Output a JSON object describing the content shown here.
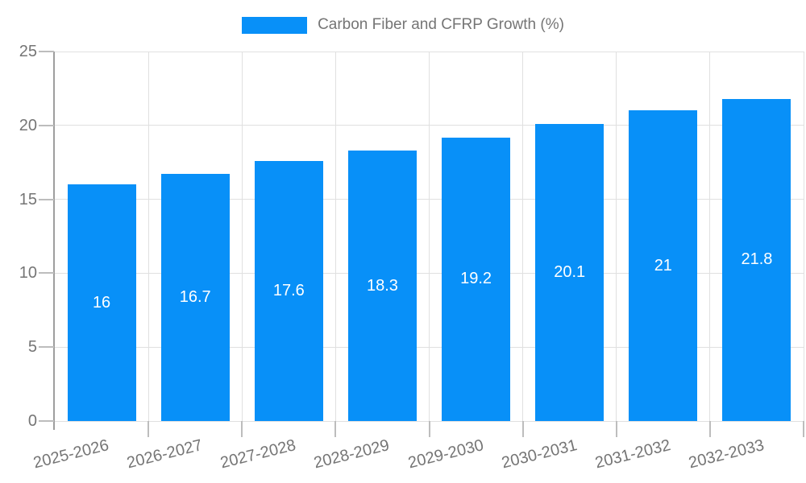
{
  "legend": {
    "label": "Carbon Fiber and CFRP Growth (%)"
  },
  "chart_data": {
    "type": "bar",
    "title": "Carbon Fiber and CFRP Growth (%)",
    "categories": [
      "2025-2026",
      "2026-2027",
      "2027-2028",
      "2028-2029",
      "2029-2030",
      "2030-2031",
      "2031-2032",
      "2032-2033"
    ],
    "values": [
      16,
      16.7,
      17.6,
      18.3,
      19.2,
      20.1,
      21,
      21.8
    ],
    "xlabel": "",
    "ylabel": "",
    "ylim": [
      0,
      25
    ],
    "yticks": [
      0,
      5,
      10,
      15,
      20,
      25
    ],
    "grid": true,
    "legend_position": "top",
    "value_labels_inside_bars": true,
    "colors": {
      "bar": "#0890f8",
      "grid": "#e0e0e0",
      "axis": "#9e9e9e",
      "tick": "#bdbdbd",
      "text": "#757575",
      "value_label": "#ffffff"
    }
  }
}
